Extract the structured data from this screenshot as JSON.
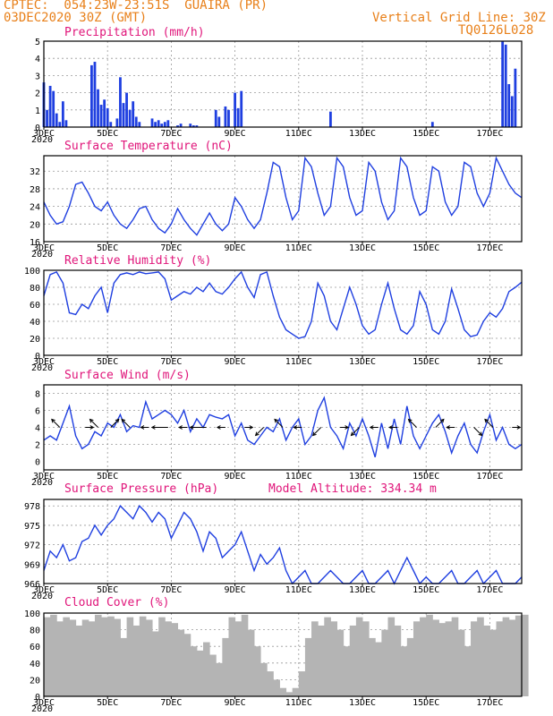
{
  "header": {
    "line1_left": "CPTEC:  054:23W-23:51S  GUAIRA (PR)",
    "line2_left": "03DEC2020 30Z (GMT)",
    "line1_right": "Vertical Grid Line: 30Z",
    "line2_right": "TQ0126L028"
  },
  "colors": {
    "header": "#e8801a",
    "title": "#e0157a",
    "line": "#1f3fe0",
    "bar": "#1f3fe0",
    "cloud": "#b4b4b4",
    "arrow": "#000000"
  },
  "x_axis": {
    "ticks": [
      "3DEC",
      "5DEC",
      "7DEC",
      "9DEC",
      "11DEC",
      "13DEC",
      "15DEC",
      "17DEC"
    ],
    "first_label_year": "2020"
  },
  "panels": {
    "precip": {
      "title": "Precipitation (mm/h)"
    },
    "temp": {
      "title": "Surface Temperature (nC)"
    },
    "rh": {
      "title": "Relative Humidity (%)"
    },
    "wind": {
      "title": "Surface Wind (m/s)"
    },
    "pressure": {
      "title": "Surface Pressure (hPa)",
      "extra": "Model Altitude: 334.34 m"
    },
    "cloud": {
      "title": "Cloud Cover (%)"
    }
  },
  "chart_data": [
    {
      "type": "bar",
      "title": "Precipitation (mm/h)",
      "yticks": [
        0,
        1,
        2,
        3,
        4,
        5
      ],
      "ylim": [
        0,
        5
      ],
      "x": [
        3.0,
        3.1,
        3.2,
        3.3,
        3.4,
        3.5,
        3.6,
        3.7,
        4.5,
        4.6,
        4.7,
        4.8,
        4.9,
        5.0,
        5.1,
        5.3,
        5.4,
        5.5,
        5.6,
        5.7,
        5.8,
        5.9,
        6.0,
        6.4,
        6.5,
        6.6,
        6.7,
        6.8,
        6.9,
        7.2,
        7.3,
        7.6,
        7.7,
        7.8,
        8.4,
        8.5,
        8.7,
        8.8,
        9.0,
        9.1,
        9.2,
        12.0,
        15.2,
        17.4,
        17.5,
        17.6,
        17.7,
        17.8
      ],
      "values": [
        2.6,
        1.0,
        2.4,
        2.1,
        0.8,
        0.3,
        1.5,
        0.4,
        3.6,
        3.8,
        2.2,
        1.3,
        1.6,
        1.1,
        0.3,
        0.5,
        2.9,
        1.4,
        2.0,
        1.0,
        1.5,
        0.6,
        0.3,
        0.5,
        0.3,
        0.4,
        0.2,
        0.3,
        0.4,
        0.1,
        0.2,
        0.2,
        0.1,
        0.1,
        1.0,
        0.6,
        1.2,
        1.0,
        2.0,
        1.1,
        2.1,
        0.9,
        0.3,
        5.0,
        4.8,
        2.5,
        1.8,
        3.4
      ]
    },
    {
      "type": "line",
      "title": "Surface Temperature (nC)",
      "yticks": [
        16,
        20,
        24,
        28,
        32
      ],
      "ylim": [
        16,
        35.5
      ],
      "x": [
        3.0,
        3.2,
        3.4,
        3.6,
        3.8,
        4.0,
        4.2,
        4.4,
        4.6,
        4.8,
        5.0,
        5.2,
        5.4,
        5.6,
        5.8,
        6.0,
        6.2,
        6.4,
        6.6,
        6.8,
        7.0,
        7.2,
        7.4,
        7.6,
        7.8,
        8.0,
        8.2,
        8.4,
        8.6,
        8.8,
        9.0,
        9.2,
        9.4,
        9.6,
        9.8,
        10.0,
        10.2,
        10.4,
        10.6,
        10.8,
        11.0,
        11.2,
        11.4,
        11.6,
        11.8,
        12.0,
        12.2,
        12.4,
        12.6,
        12.8,
        13.0,
        13.2,
        13.4,
        13.6,
        13.8,
        14.0,
        14.2,
        14.4,
        14.6,
        14.8,
        15.0,
        15.2,
        15.4,
        15.6,
        15.8,
        16.0,
        16.2,
        16.4,
        16.6,
        16.8,
        17.0,
        17.2,
        17.4,
        17.6,
        17.8,
        18.0
      ],
      "values": [
        25,
        22,
        20,
        20.5,
        24,
        29,
        29.5,
        27,
        24,
        23,
        25,
        22,
        20,
        19,
        21,
        23.5,
        24,
        21,
        19,
        18,
        20,
        23.5,
        21,
        19,
        17.5,
        20,
        22.5,
        20,
        18.5,
        20,
        26,
        24,
        21,
        19,
        21,
        27,
        34,
        33,
        26,
        21,
        23,
        35,
        33,
        27,
        22,
        24,
        35,
        33,
        26,
        22,
        23,
        34,
        32,
        25,
        21,
        23,
        35,
        33,
        26,
        22,
        23,
        33,
        32,
        25,
        22,
        24,
        34,
        33,
        27,
        24,
        27,
        35,
        32,
        29,
        27,
        26
      ]
    },
    {
      "type": "line",
      "title": "Relative Humidity (%)",
      "yticks": [
        0,
        20,
        40,
        60,
        80,
        100
      ],
      "ylim": [
        0,
        100
      ],
      "x": [
        3.0,
        3.2,
        3.4,
        3.6,
        3.8,
        4.0,
        4.2,
        4.4,
        4.6,
        4.8,
        5.0,
        5.2,
        5.4,
        5.6,
        5.8,
        6.0,
        6.2,
        6.4,
        6.6,
        6.8,
        7.0,
        7.2,
        7.4,
        7.6,
        7.8,
        8.0,
        8.2,
        8.4,
        8.6,
        8.8,
        9.0,
        9.2,
        9.4,
        9.6,
        9.8,
        10.0,
        10.2,
        10.4,
        10.6,
        10.8,
        11.0,
        11.2,
        11.4,
        11.6,
        11.8,
        12.0,
        12.2,
        12.4,
        12.6,
        12.8,
        13.0,
        13.2,
        13.4,
        13.6,
        13.8,
        14.0,
        14.2,
        14.4,
        14.6,
        14.8,
        15.0,
        15.2,
        15.4,
        15.6,
        15.8,
        16.0,
        16.2,
        16.4,
        16.6,
        16.8,
        17.0,
        17.2,
        17.4,
        17.6,
        17.8,
        18.0
      ],
      "values": [
        70,
        95,
        98,
        85,
        50,
        48,
        60,
        55,
        70,
        80,
        50,
        85,
        95,
        97,
        95,
        98,
        96,
        97,
        98,
        90,
        65,
        70,
        75,
        72,
        80,
        75,
        85,
        75,
        72,
        80,
        90,
        98,
        80,
        68,
        95,
        98,
        70,
        45,
        30,
        25,
        20,
        22,
        40,
        85,
        70,
        40,
        30,
        55,
        80,
        60,
        35,
        25,
        30,
        60,
        85,
        55,
        30,
        25,
        35,
        75,
        60,
        30,
        25,
        40,
        78,
        55,
        30,
        22,
        24,
        40,
        50,
        45,
        55,
        75,
        80,
        86
      ]
    },
    {
      "type": "line",
      "title": "Surface Wind (m/s)",
      "yticks": [
        0,
        2,
        4,
        6,
        8
      ],
      "ylim": [
        -1,
        9
      ],
      "x": [
        3.0,
        3.2,
        3.4,
        3.6,
        3.8,
        4.0,
        4.2,
        4.4,
        4.6,
        4.8,
        5.0,
        5.2,
        5.4,
        5.6,
        5.8,
        6.0,
        6.2,
        6.4,
        6.6,
        6.8,
        7.0,
        7.2,
        7.4,
        7.6,
        7.8,
        8.0,
        8.2,
        8.4,
        8.6,
        8.8,
        9.0,
        9.2,
        9.4,
        9.6,
        9.8,
        10.0,
        10.2,
        10.4,
        10.6,
        10.8,
        11.0,
        11.2,
        11.4,
        11.6,
        11.8,
        12.0,
        12.2,
        12.4,
        12.6,
        12.8,
        13.0,
        13.2,
        13.4,
        13.6,
        13.8,
        14.0,
        14.2,
        14.4,
        14.6,
        14.8,
        15.0,
        15.2,
        15.4,
        15.6,
        15.8,
        16.0,
        16.2,
        16.4,
        16.6,
        16.8,
        17.0,
        17.2,
        17.4,
        17.6,
        17.8,
        18.0
      ],
      "values": [
        2.5,
        3.0,
        2.5,
        4.5,
        6.5,
        3.0,
        1.5,
        2.0,
        3.5,
        3.0,
        4.5,
        4.0,
        5.5,
        3.5,
        4.2,
        4.0,
        7.0,
        5.0,
        5.5,
        6.0,
        5.5,
        4.5,
        6.0,
        3.5,
        5.0,
        4.0,
        5.5,
        5.2,
        5.0,
        5.5,
        3.0,
        4.5,
        2.5,
        2.0,
        3.0,
        4.0,
        3.5,
        5.0,
        2.5,
        4.0,
        5.0,
        2.0,
        3.0,
        6.0,
        7.5,
        4.0,
        3.0,
        1.5,
        4.5,
        3.0,
        5.0,
        3.0,
        0.5,
        4.5,
        1.5,
        5.0,
        2.0,
        6.5,
        3.0,
        1.5,
        3.0,
        4.5,
        5.5,
        3.5,
        1.0,
        3.0,
        4.5,
        2.0,
        1.0,
        3.5,
        5.5,
        2.5,
        4.0,
        2.0,
        1.5,
        2.0
      ],
      "arrows": [
        {
          "x": 3.5,
          "dx": -1,
          "dy": 1
        },
        {
          "x": 4.3,
          "dx": 1,
          "dy": 0
        },
        {
          "x": 4.7,
          "dx": -1,
          "dy": 1
        },
        {
          "x": 5.1,
          "dx": 1,
          "dy": 1
        },
        {
          "x": 5.7,
          "dx": -1,
          "dy": 1
        },
        {
          "x": 6.3,
          "dx": -1,
          "dy": 0
        },
        {
          "x": 6.9,
          "dx": -2,
          "dy": 0
        },
        {
          "x": 7.5,
          "dx": -1,
          "dy": 0
        },
        {
          "x": 8.1,
          "dx": -2,
          "dy": 0
        },
        {
          "x": 8.7,
          "dx": -1,
          "dy": 0
        },
        {
          "x": 9.3,
          "dx": 1,
          "dy": 0
        },
        {
          "x": 9.9,
          "dx": -1,
          "dy": -1
        },
        {
          "x": 10.5,
          "dx": -1,
          "dy": 1
        },
        {
          "x": 11.1,
          "dx": -1,
          "dy": 0
        },
        {
          "x": 11.7,
          "dx": -1,
          "dy": -1
        },
        {
          "x": 12.3,
          "dx": 1,
          "dy": 0
        },
        {
          "x": 12.9,
          "dx": -1,
          "dy": -1
        },
        {
          "x": 13.5,
          "dx": -1,
          "dy": 0
        },
        {
          "x": 14.1,
          "dx": -1,
          "dy": 0
        },
        {
          "x": 14.7,
          "dx": -1,
          "dy": 1
        },
        {
          "x": 15.3,
          "dx": 1,
          "dy": 1
        },
        {
          "x": 15.9,
          "dx": -1,
          "dy": 0
        },
        {
          "x": 16.5,
          "dx": 1,
          "dy": -1
        },
        {
          "x": 17.1,
          "dx": -1,
          "dy": 1
        },
        {
          "x": 17.7,
          "dx": 1,
          "dy": 0
        }
      ]
    },
    {
      "type": "line",
      "title": "Surface Pressure (hPa)",
      "yticks": [
        966,
        969,
        972,
        975,
        978
      ],
      "ylim": [
        966,
        979
      ],
      "x": [
        3.0,
        3.2,
        3.4,
        3.6,
        3.8,
        4.0,
        4.2,
        4.4,
        4.6,
        4.8,
        5.0,
        5.2,
        5.4,
        5.6,
        5.8,
        6.0,
        6.2,
        6.4,
        6.6,
        6.8,
        7.0,
        7.2,
        7.4,
        7.6,
        7.8,
        8.0,
        8.2,
        8.4,
        8.6,
        8.8,
        9.0,
        9.2,
        9.4,
        9.6,
        9.8,
        10.0,
        10.2,
        10.4,
        10.6,
        10.8,
        11.0,
        11.2,
        11.4,
        11.6,
        11.8,
        12.0,
        12.2,
        12.4,
        12.6,
        12.8,
        13.0,
        13.2,
        13.4,
        13.6,
        13.8,
        14.0,
        14.2,
        14.4,
        14.6,
        14.8,
        15.0,
        15.2,
        15.4,
        15.6,
        15.8,
        16.0,
        16.2,
        16.4,
        16.6,
        16.8,
        17.0,
        17.2,
        17.4,
        17.6,
        17.8,
        18.0
      ],
      "values": [
        968,
        971,
        970,
        972,
        969.5,
        970,
        972.5,
        973,
        975,
        973.5,
        975,
        976,
        978,
        977,
        976,
        978,
        977,
        975.5,
        977,
        976,
        973,
        975,
        977,
        976,
        974,
        971,
        974,
        973,
        970,
        971,
        972,
        974,
        971,
        968,
        970.5,
        969,
        970,
        971.5,
        968,
        966,
        967,
        968,
        966,
        965,
        967,
        968,
        967,
        965,
        966,
        967,
        968,
        966,
        964,
        967,
        968,
        966,
        968,
        970,
        968,
        965,
        967,
        966,
        965,
        967,
        968,
        966,
        965,
        967,
        968,
        966,
        967,
        968,
        966,
        965,
        966,
        967
      ]
    },
    {
      "type": "bar",
      "title": "Cloud Cover (%)",
      "yticks": [
        0,
        20,
        40,
        60,
        80,
        100
      ],
      "ylim": [
        0,
        100
      ],
      "x": [
        3.0,
        3.2,
        3.4,
        3.6,
        3.8,
        4.0,
        4.2,
        4.4,
        4.6,
        4.8,
        5.0,
        5.2,
        5.4,
        5.6,
        5.8,
        6.0,
        6.2,
        6.4,
        6.6,
        6.8,
        7.0,
        7.2,
        7.4,
        7.6,
        7.8,
        8.0,
        8.2,
        8.4,
        8.6,
        8.8,
        9.0,
        9.2,
        9.4,
        9.6,
        9.8,
        10.0,
        10.2,
        10.4,
        10.6,
        10.8,
        11.0,
        11.2,
        11.4,
        11.6,
        11.8,
        12.0,
        12.2,
        12.4,
        12.6,
        12.8,
        13.0,
        13.2,
        13.4,
        13.6,
        13.8,
        14.0,
        14.2,
        14.4,
        14.6,
        14.8,
        15.0,
        15.2,
        15.4,
        15.6,
        15.8,
        16.0,
        16.2,
        16.4,
        16.6,
        16.8,
        17.0,
        17.2,
        17.4,
        17.6,
        17.8,
        18.0
      ],
      "values": [
        95,
        98,
        90,
        95,
        92,
        85,
        92,
        90,
        98,
        95,
        96,
        93,
        70,
        95,
        85,
        96,
        92,
        78,
        95,
        90,
        88,
        80,
        75,
        60,
        55,
        65,
        50,
        40,
        70,
        95,
        90,
        98,
        80,
        60,
        40,
        30,
        20,
        10,
        5,
        10,
        30,
        70,
        90,
        85,
        95,
        90,
        80,
        60,
        85,
        95,
        90,
        70,
        65,
        80,
        95,
        85,
        60,
        70,
        90,
        95,
        98,
        92,
        88,
        90,
        95,
        80,
        60,
        90,
        95,
        85,
        80,
        90,
        95,
        92,
        97,
        98
      ]
    }
  ]
}
